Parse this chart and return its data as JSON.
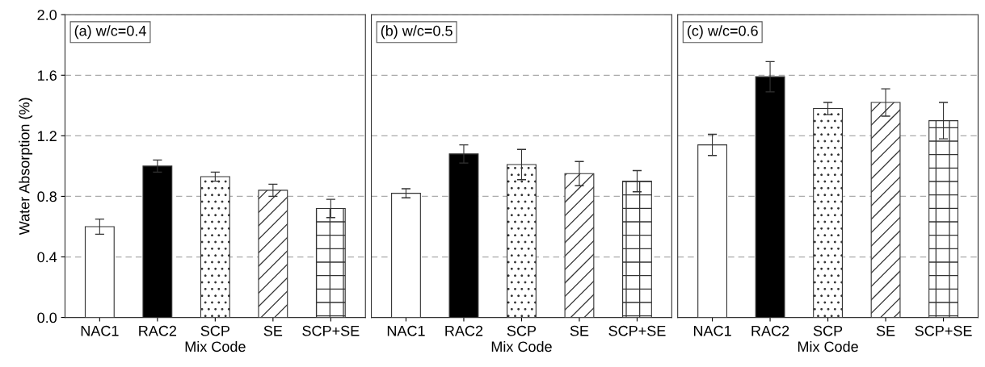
{
  "chart_data": [
    {
      "type": "bar",
      "annotations": [
        "(a) w/c=0.4"
      ],
      "xlabel": "Mix Code",
      "ylabel": "Water Absorption (%)",
      "categories": [
        "NAC1",
        "RAC2",
        "SCP",
        "SE",
        "SCP+SE"
      ],
      "values": [
        0.6,
        1.0,
        0.93,
        0.84,
        0.72
      ],
      "errors": [
        0.05,
        0.04,
        0.03,
        0.04,
        0.06
      ],
      "colors": [
        "#ffffff",
        "#000000",
        "#ffffff",
        "#ffffff",
        "#ffffff"
      ],
      "ylim": [
        0,
        2.0
      ],
      "yticks": [
        {
          "value": 0,
          "label": "0.0"
        },
        0.4,
        0.8,
        1.2,
        1.6,
        {
          "value": 2,
          "label": "2.0"
        }
      ],
      "grid": "y"
    },
    {
      "type": "bar",
      "annotations": [
        "(b) w/c=0.5"
      ],
      "xlabel": "Mix Code",
      "categories": [
        "NAC1",
        "RAC2",
        "SCP",
        "SE",
        "SCP+SE"
      ],
      "values": [
        0.82,
        1.08,
        1.01,
        0.95,
        0.9
      ],
      "errors": [
        0.03,
        0.06,
        0.1,
        0.08,
        0.07
      ],
      "colors": [
        "#ffffff",
        "#000000",
        "#ffffff",
        "#ffffff",
        "#ffffff"
      ],
      "ylim": [
        0,
        2.0
      ],
      "yticks": [
        0,
        0.4,
        0.8,
        1.2,
        1.6,
        2
      ],
      "grid": "y",
      "tick_labels": "x"
    },
    {
      "type": "bar",
      "annotations": [
        "(c) w/c=0.6"
      ],
      "xlabel": "Mix Code",
      "categories": [
        "NAC1",
        "RAC2",
        "SCP",
        "SE",
        "SCP+SE"
      ],
      "values": [
        1.14,
        1.59,
        1.38,
        1.42,
        1.3
      ],
      "errors": [
        0.07,
        0.1,
        0.04,
        0.09,
        0.12
      ],
      "colors": [
        "#ffffff",
        "#000000",
        "#ffffff",
        "#ffffff",
        "#ffffff"
      ],
      "ylim": [
        0,
        2.0
      ],
      "yticks": [
        0,
        0.4,
        0.8,
        1.2,
        1.6,
        2
      ],
      "grid": "y",
      "tick_labels": "x"
    }
  ]
}
